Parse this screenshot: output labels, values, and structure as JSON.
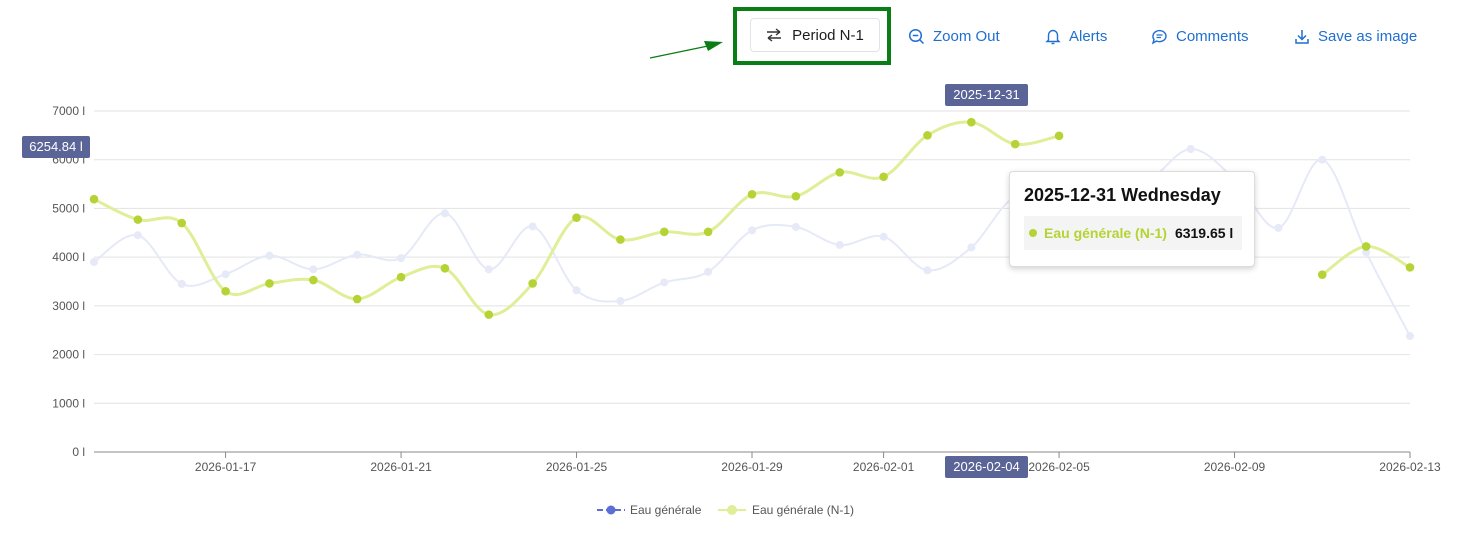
{
  "toolbar": {
    "period_label": "Period N-1",
    "zoom_out_label": "Zoom Out",
    "alerts_label": "Alerts",
    "comments_label": "Comments",
    "save_label": "Save as image",
    "accent_color": "#1f6fd1",
    "highlight_color": "#0a7d14"
  },
  "tooltip": {
    "title": "2025-12-31 Wednesday",
    "series": "Eau générale (N-1)",
    "value": "6319.65 l"
  },
  "crosshair": {
    "y_label": "6254.84 l",
    "top_label": "2025-12-31",
    "bottom_label": "2026-02-04"
  },
  "chart_data": {
    "type": "line",
    "x_start": "2026-01-14",
    "x_end": "2026-02-13",
    "x": [
      "2026-01-14",
      "2026-01-15",
      "2026-01-16",
      "2026-01-17",
      "2026-01-18",
      "2026-01-19",
      "2026-01-20",
      "2026-01-21",
      "2026-01-22",
      "2026-01-23",
      "2026-01-24",
      "2026-01-25",
      "2026-01-26",
      "2026-01-27",
      "2026-01-28",
      "2026-01-29",
      "2026-01-30",
      "2026-01-31",
      "2026-02-01",
      "2026-02-02",
      "2026-02-03",
      "2026-02-04",
      "2026-02-05",
      "2026-02-06",
      "2026-02-07",
      "2026-02-08",
      "2026-02-09",
      "2026-02-10",
      "2026-02-11",
      "2026-02-12",
      "2026-02-13"
    ],
    "x_ticks": [
      "2026-01-17",
      "2026-01-21",
      "2026-01-25",
      "2026-01-29",
      "2026-02-01",
      "2026-02-05",
      "2026-02-09",
      "2026-02-13"
    ],
    "y_ticks": [
      0,
      1000,
      2000,
      3000,
      4000,
      5000,
      6000,
      7000
    ],
    "y_tick_labels": [
      "0 l",
      "1000 l",
      "2000 l",
      "3000 l",
      "4000 l",
      "5000 l",
      "6000 l",
      "7000 l"
    ],
    "ylim": [
      0,
      7000
    ],
    "legend_position": "bottom-center",
    "series": [
      {
        "name": "Eau générale",
        "color": "#5b6fd6",
        "faded_color": "#e6e9f7",
        "values": [
          3900,
          4450,
          3450,
          3650,
          4030,
          3750,
          4050,
          3980,
          4900,
          3750,
          4630,
          3320,
          3100,
          3480,
          3700,
          4550,
          4620,
          4250,
          4420,
          3730,
          4200,
          5230,
          4900,
          5000,
          5500,
          6220,
          5600,
          4600,
          6000,
          4100,
          2380
        ]
      },
      {
        "name": "Eau générale (N-1)",
        "color": "#b5d334",
        "line_color": "#dfee97",
        "values": [
          5190,
          4770,
          4700,
          3300,
          3460,
          3530,
          3140,
          3590,
          3770,
          2820,
          3460,
          4810,
          4360,
          4520,
          4520,
          5290,
          5250,
          5740,
          5650,
          6500,
          6770,
          6320,
          6490,
          null,
          null,
          null,
          null,
          null,
          3640,
          4220,
          3790
        ]
      }
    ]
  }
}
